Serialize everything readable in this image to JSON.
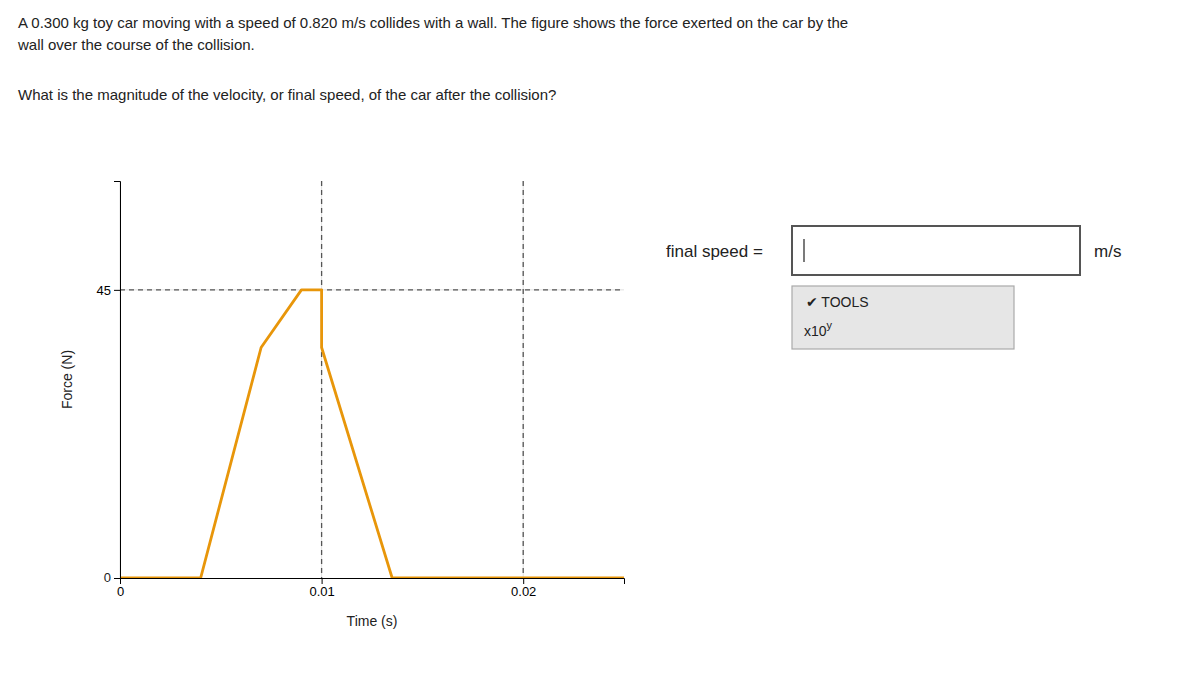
{
  "chart_data": {
    "type": "line",
    "title": "A 0.300 kg toy car moving with a speed of 0.820 m/s collides with a wall. The figure shows the force exerted on the car by the\nwall over the course of the collision.",
    "subtitle": "What is the magnitude of the velocity, or final speed, of the car after the collision?",
    "xlabel": "Time (s)",
    "ylabel": "Force (N)",
    "x": [
      0.0,
      0.004,
      0.004,
      0.007,
      0.009,
      0.01,
      0.01,
      0.0135,
      0.025
    ],
    "values": [
      0.0,
      0.0,
      0.0,
      36.0,
      45.0,
      45.0,
      36.0,
      0.0,
      0.0
    ],
    "color": "#e8960a",
    "xlim": [
      0,
      0.025
    ],
    "ylim": [
      0,
      62
    ],
    "xticks": [
      0,
      0.01,
      0.02
    ],
    "yticks": [
      45
    ],
    "grid": true,
    "reference_lines": {
      "x": [
        0.01,
        0.02
      ],
      "y": [
        45
      ]
    },
    "annotations": [
      "0",
      "final speed =",
      "m/s",
      "✔ TOOLS",
      "x10",
      "y"
    ]
  }
}
